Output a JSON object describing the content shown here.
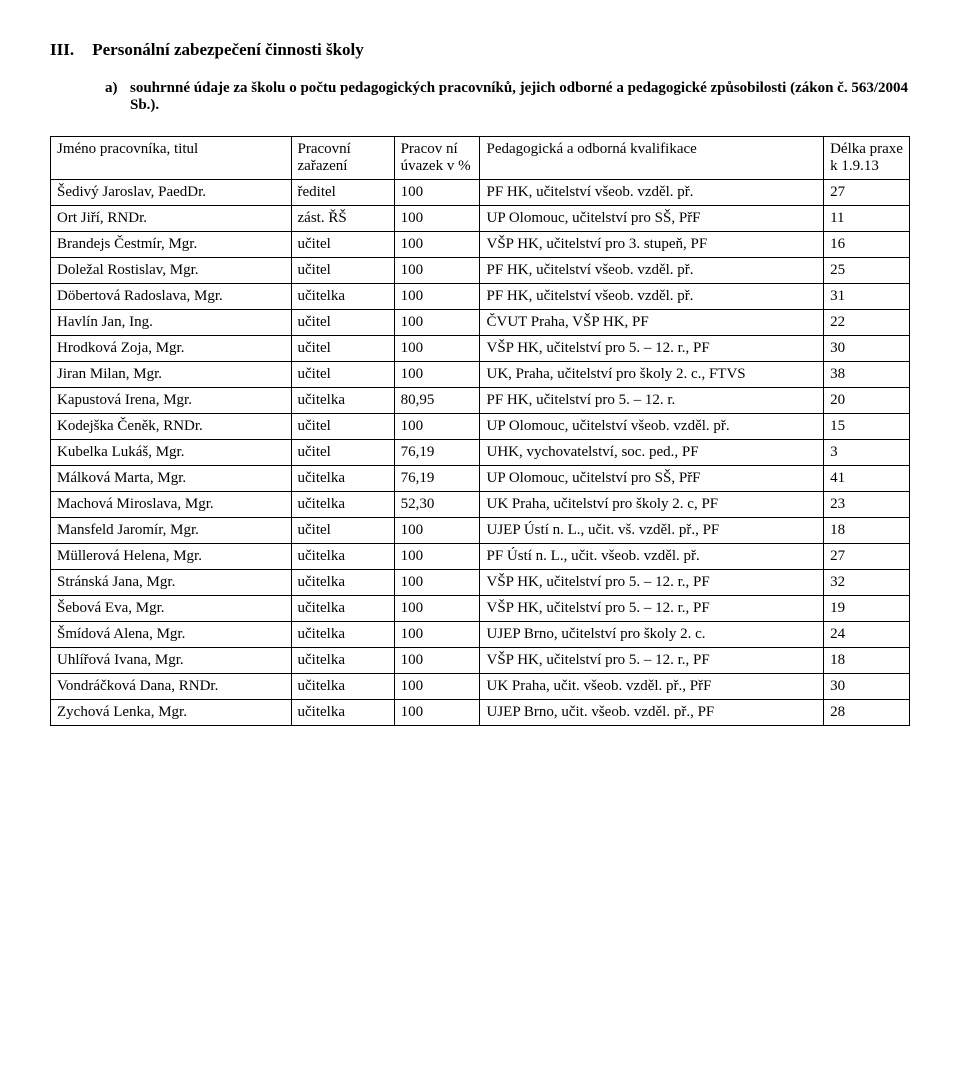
{
  "heading": {
    "roman": "III.",
    "title": "Personální zabezpečení činnosti školy"
  },
  "sub_point": {
    "letter": "a)",
    "text": "souhrnné údaje za školu o počtu pedagogických pracovníků, jejich odborné a pedagogické způsobilosti (zákon č. 563/2004 Sb.)."
  },
  "table": {
    "headers": {
      "name": "Jméno pracovníka, titul",
      "position": "Pracovní zařazení",
      "pct": "Pracov ní úvazek v %",
      "qualification": "Pedagogická a odborná kvalifikace",
      "length": "Délka praxe k 1.9.13"
    },
    "rows": [
      {
        "name": "Šedivý Jaroslav, PaedDr.",
        "position": "ředitel",
        "pct": "100",
        "qualification": "PF HK, učitelství všeob. vzděl. př.",
        "length": "27"
      },
      {
        "name": "Ort Jiří, RNDr.",
        "position": "zást. ŘŠ",
        "pct": "100",
        "qualification": "UP Olomouc, učitelství pro SŠ, PřF",
        "length": "11"
      },
      {
        "name": "Brandejs Čestmír, Mgr.",
        "position": "učitel",
        "pct": "100",
        "qualification": "VŠP HK, učitelství pro 3. stupeň, PF",
        "length": "16"
      },
      {
        "name": "Doležal Rostislav, Mgr.",
        "position": "učitel",
        "pct": "100",
        "qualification": "PF HK, učitelství všeob. vzděl. př.",
        "length": "25"
      },
      {
        "name": "Döbertová Radoslava, Mgr.",
        "position": "učitelka",
        "pct": "100",
        "qualification": "PF HK, učitelství všeob. vzděl. př.",
        "length": "31"
      },
      {
        "name": "Havlín Jan, Ing.",
        "position": "učitel",
        "pct": "100",
        "qualification": "ČVUT Praha, VŠP HK, PF",
        "length": "22"
      },
      {
        "name": "Hrodková Zoja, Mgr.",
        "position": "učitel",
        "pct": "100",
        "qualification": "VŠP HK, učitelství pro 5. – 12. r., PF",
        "length": "30"
      },
      {
        "name": "Jiran Milan, Mgr.",
        "position": "učitel",
        "pct": "100",
        "qualification": "UK, Praha, učitelství pro školy 2. c., FTVS",
        "length": "38"
      },
      {
        "name": "Kapustová Irena, Mgr.",
        "position": "učitelka",
        "pct": "80,95",
        "qualification": "PF HK, učitelství pro 5. – 12. r.",
        "length": "20"
      },
      {
        "name": "Kodejška Čeněk, RNDr.",
        "position": "učitel",
        "pct": "100",
        "qualification": "UP Olomouc, učitelství všeob. vzděl. př.",
        "length": "15"
      },
      {
        "name": "Kubelka Lukáš, Mgr.",
        "position": "učitel",
        "pct": "76,19",
        "qualification": "UHK, vychovatelství, soc. ped., PF",
        "length": "3"
      },
      {
        "name": "Málková Marta, Mgr.",
        "position": "učitelka",
        "pct": "76,19",
        "qualification": "UP Olomouc, učitelství pro SŠ, PřF",
        "length": "41"
      },
      {
        "name": "Machová Miroslava, Mgr.",
        "position": "učitelka",
        "pct": "52,30",
        "qualification": "UK Praha, učitelství pro školy 2. c, PF",
        "length": "23"
      },
      {
        "name": "Mansfeld Jaromír, Mgr.",
        "position": "učitel",
        "pct": "100",
        "qualification": "UJEP Ústí n. L., učit. vš. vzděl. př., PF",
        "length": "18"
      },
      {
        "name": "Müllerová Helena, Mgr.",
        "position": "učitelka",
        "pct": "100",
        "qualification": "PF Ústí n. L., učit. všeob. vzděl. př.",
        "length": "27"
      },
      {
        "name": "Stránská Jana, Mgr.",
        "position": "učitelka",
        "pct": "100",
        "qualification": "VŠP HK, učitelství pro 5. – 12. r., PF",
        "length": "32"
      },
      {
        "name": "Šebová Eva, Mgr.",
        "position": "učitelka",
        "pct": "100",
        "qualification": "VŠP HK, učitelství pro 5. – 12. r., PF",
        "length": "19"
      },
      {
        "name": "Šmídová Alena, Mgr.",
        "position": "učitelka",
        "pct": "100",
        "qualification": "UJEP Brno, učitelství pro školy 2. c.",
        "length": "24"
      },
      {
        "name": "Uhlířová Ivana, Mgr.",
        "position": "učitelka",
        "pct": "100",
        "qualification": "VŠP HK, učitelství pro 5. – 12. r., PF",
        "length": "18"
      },
      {
        "name": "Vondráčková Dana, RNDr.",
        "position": "učitelka",
        "pct": "100",
        "qualification": "UK Praha, učit. všeob. vzděl. př., PřF",
        "length": "30"
      },
      {
        "name": "Zychová Lenka, Mgr.",
        "position": "učitelka",
        "pct": "100",
        "qualification": "UJEP Brno, učit. všeob. vzděl. př., PF",
        "length": "28"
      }
    ]
  }
}
